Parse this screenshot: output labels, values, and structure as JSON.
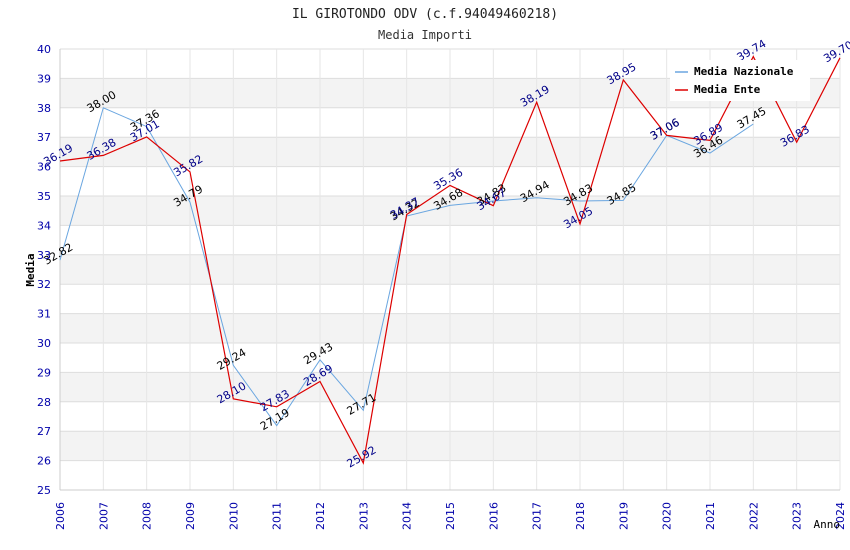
{
  "chart_data": {
    "type": "line",
    "title": "IL GIROTONDO ODV (c.f.94049460218)",
    "subtitle": "Media Importi",
    "xlabel": "Anno",
    "ylabel": "Media",
    "ylim": [
      25,
      40
    ],
    "yticks": [
      "25",
      "26",
      "27",
      "28",
      "29",
      "30",
      "31",
      "32",
      "33",
      "34",
      "35",
      "36",
      "37",
      "38",
      "39",
      "40"
    ],
    "x": [
      "2006",
      "2007",
      "2008",
      "2009",
      "2010",
      "2011",
      "2012",
      "2013",
      "2014",
      "2015",
      "2016",
      "2017",
      "2018",
      "2019",
      "2020",
      "2021",
      "2022",
      "2023",
      "2024"
    ],
    "grid": true,
    "legend_position": "top-right",
    "series": [
      {
        "name": "Media Nazionale",
        "color": "#6aa6e0",
        "label_color": "#000000",
        "values": [
          32.82,
          38.0,
          37.36,
          34.79,
          29.24,
          27.19,
          29.43,
          27.71,
          34.32,
          34.68,
          34.83,
          34.94,
          34.83,
          34.85,
          37.06,
          36.46,
          37.45,
          null,
          null
        ],
        "labels": [
          "32.82",
          "38.00",
          "37.36",
          "34.79",
          "29.24",
          "27.19",
          "29.43",
          "27.71",
          "34.32",
          "34.68",
          "34.83",
          "34.94",
          "34.83",
          "34.85",
          "37.06",
          "36.46",
          "37.45",
          "",
          ""
        ]
      },
      {
        "name": "Media Ente",
        "color": "#dd0000",
        "label_color": "#000088",
        "values": [
          36.19,
          36.38,
          37.01,
          35.82,
          28.1,
          27.83,
          28.69,
          25.92,
          34.37,
          35.36,
          34.67,
          38.19,
          34.05,
          38.95,
          37.06,
          36.89,
          39.74,
          36.83,
          39.7
        ],
        "labels": [
          "36.19",
          "36.38",
          "37.01",
          "35.82",
          "28.10",
          "27.83",
          "28.69",
          "25.92",
          "34.37",
          "35.36",
          "34.67",
          "38.19",
          "34.05",
          "38.95",
          "37.06",
          "36.89",
          "39.74",
          "36.83",
          "39.70"
        ]
      }
    ]
  }
}
